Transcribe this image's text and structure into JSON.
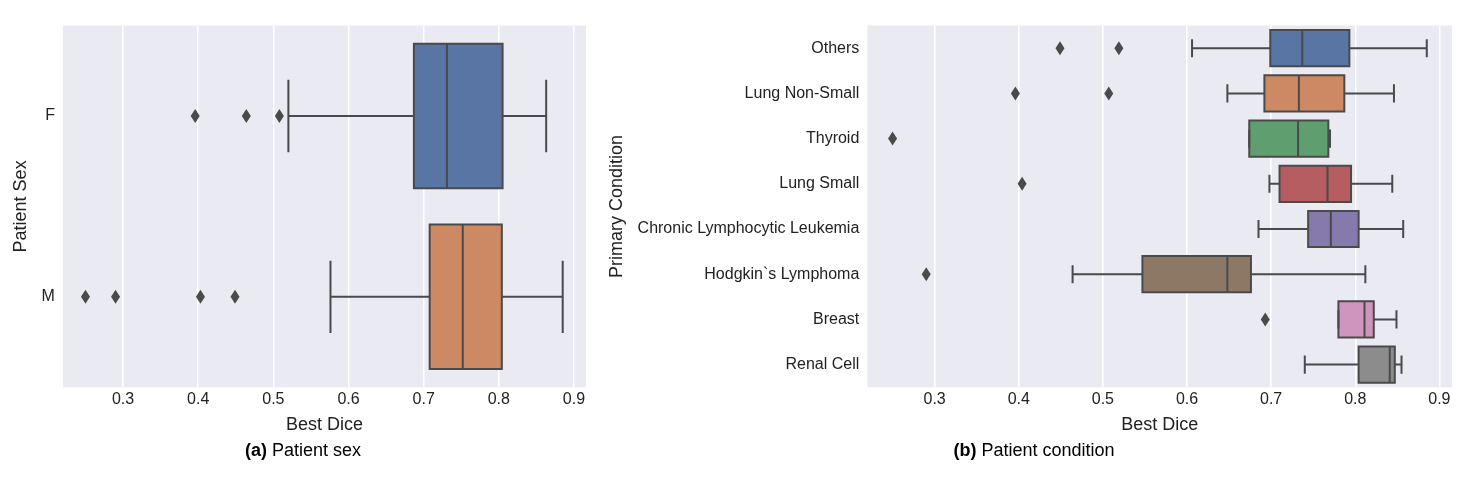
{
  "chart_data": [
    {
      "type": "box",
      "orientation": "horizontal",
      "title": "(a) Patient sex",
      "xlabel": "Best Dice",
      "ylabel": "Patient Sex",
      "categories": [
        "F",
        "M"
      ],
      "colors": [
        "#5875a4",
        "#cc8963"
      ],
      "boxes": [
        {
          "low": 0.52,
          "q1": 0.687,
          "median": 0.731,
          "q3": 0.805,
          "high": 0.863,
          "outliers": [
            0.396,
            0.464,
            0.508
          ]
        },
        {
          "low": 0.576,
          "q1": 0.708,
          "median": 0.752,
          "q3": 0.804,
          "high": 0.885,
          "outliers": [
            0.25,
            0.29,
            0.403,
            0.449
          ]
        }
      ],
      "xlim": [
        0.22,
        0.916
      ],
      "xticks": [
        0.3,
        0.4,
        0.5,
        0.6,
        0.7,
        0.8,
        0.9
      ],
      "grid": "x"
    },
    {
      "type": "box",
      "orientation": "horizontal",
      "title": "(b) Patient condition",
      "xlabel": "Best Dice",
      "ylabel": "Primary Condition",
      "categories": [
        "Others",
        "Lung Non-Small",
        "Thyroid",
        "Lung Small",
        "Chronic Lymphocytic Leukemia",
        "Hodgkin`s Lymphoma",
        "Breast",
        "Renal Cell"
      ],
      "colors": [
        "#5875a4",
        "#cc8963",
        "#5f9e6e",
        "#b55d60",
        "#857aab",
        "#8d7866",
        "#d095bf",
        "#8c8c8c"
      ],
      "boxes": [
        {
          "low": 0.606,
          "q1": 0.699,
          "median": 0.737,
          "q3": 0.793,
          "high": 0.885,
          "outliers": [
            0.449,
            0.519
          ]
        },
        {
          "low": 0.648,
          "q1": 0.692,
          "median": 0.733,
          "q3": 0.787,
          "high": 0.846,
          "outliers": [
            0.396,
            0.507
          ]
        },
        {
          "low": 0.674,
          "q1": 0.674,
          "median": 0.732,
          "q3": 0.768,
          "high": 0.77,
          "outliers": [
            0.25
          ]
        },
        {
          "low": 0.698,
          "q1": 0.71,
          "median": 0.767,
          "q3": 0.795,
          "high": 0.844,
          "outliers": [
            0.404
          ]
        },
        {
          "low": 0.685,
          "q1": 0.744,
          "median": 0.771,
          "q3": 0.804,
          "high": 0.857
        },
        {
          "low": 0.464,
          "q1": 0.547,
          "median": 0.648,
          "q3": 0.676,
          "high": 0.812,
          "outliers": [
            0.29
          ]
        },
        {
          "low": 0.78,
          "q1": 0.78,
          "median": 0.811,
          "q3": 0.822,
          "high": 0.849,
          "outliers": [
            0.693
          ]
        },
        {
          "low": 0.74,
          "q1": 0.804,
          "median": 0.841,
          "q3": 0.847,
          "high": 0.855
        }
      ],
      "xlim": [
        0.22,
        0.915
      ],
      "xticks": [
        0.3,
        0.4,
        0.5,
        0.6,
        0.7,
        0.8,
        0.9
      ],
      "grid": "x"
    }
  ]
}
